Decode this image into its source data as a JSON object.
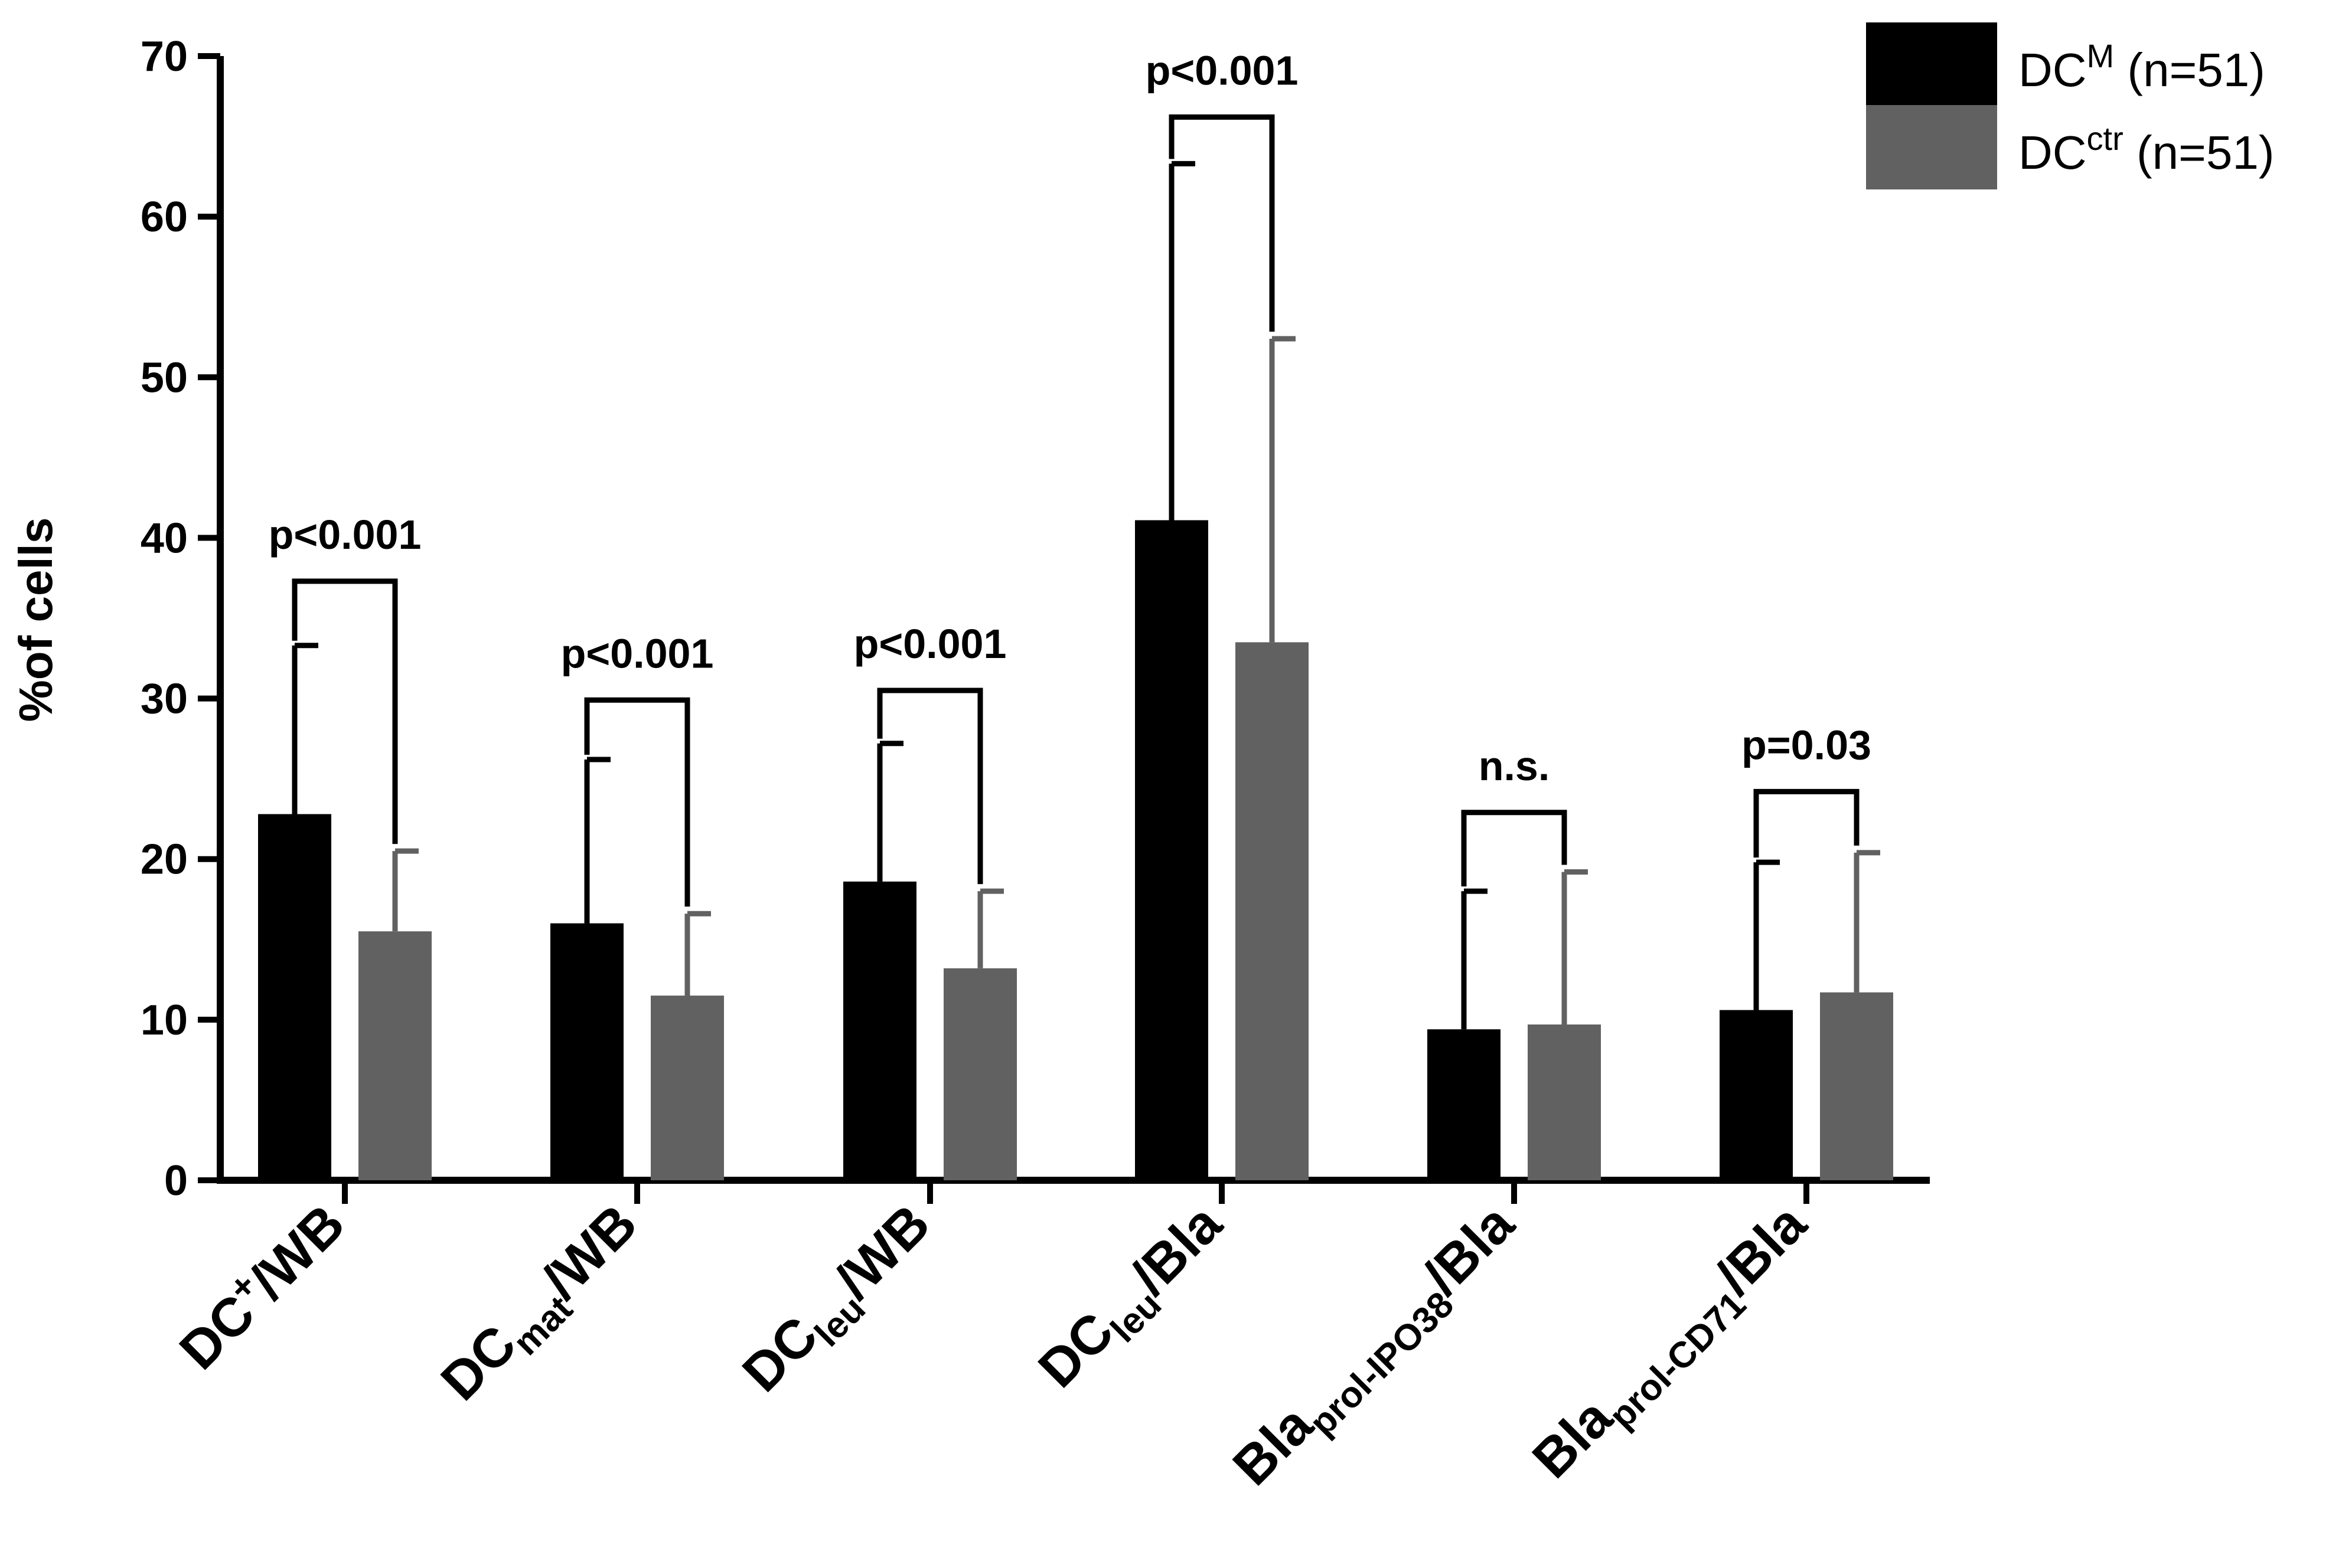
{
  "chart_data": {
    "type": "bar",
    "title": "",
    "xlabel": "",
    "ylabel": "%of cells",
    "ylim": [
      0,
      70
    ],
    "yticks": [
      "0",
      "10",
      "20",
      "30",
      "40",
      "50",
      "60",
      "70"
    ],
    "categories": [
      {
        "main": "DC",
        "sub": "",
        "sup": "+",
        "tail": "/WB"
      },
      {
        "main": "DC",
        "sub": "mat",
        "sup": "",
        "tail": "/WB"
      },
      {
        "main": "DC",
        "sub": "leu",
        "sup": "",
        "tail": "/WB"
      },
      {
        "main": "DC",
        "sub": "leu",
        "sup": "",
        "tail": "/Bla"
      },
      {
        "main": "Bla",
        "sub": "prol-IPO38",
        "sup": "",
        "tail": "/Bla"
      },
      {
        "main": "Bla",
        "sub": "prol-CD71",
        "sup": "",
        "tail": "/Bla"
      }
    ],
    "series": [
      {
        "name_main": "DC",
        "name_sup": "M",
        "name_tail": " (n=51)",
        "color": "#000000",
        "values": [
          22.8,
          16.0,
          18.6,
          41.1,
          9.4,
          10.6
        ],
        "error": [
          10.5,
          10.2,
          8.6,
          22.2,
          8.6,
          9.2
        ]
      },
      {
        "name_main": "DC",
        "name_sup": "ctr",
        "name_tail": " (n=51)",
        "color": "#616161",
        "values": [
          15.5,
          11.5,
          13.2,
          33.5,
          9.7,
          11.7
        ],
        "error": [
          5.0,
          5.1,
          4.8,
          18.9,
          9.5,
          8.7
        ]
      }
    ],
    "significance": [
      {
        "label": "p<0.001",
        "bracket_y": 37.3
      },
      {
        "label": "p<0.001",
        "bracket_y": 29.9
      },
      {
        "label": "p<0.001",
        "bracket_y": 30.5
      },
      {
        "label": "p<0.001",
        "bracket_y": 66.2
      },
      {
        "label": "n.s.",
        "bracket_y": 22.9
      },
      {
        "label": "p=0.03",
        "bracket_y": 24.2
      }
    ],
    "legend_position": "top-right"
  }
}
